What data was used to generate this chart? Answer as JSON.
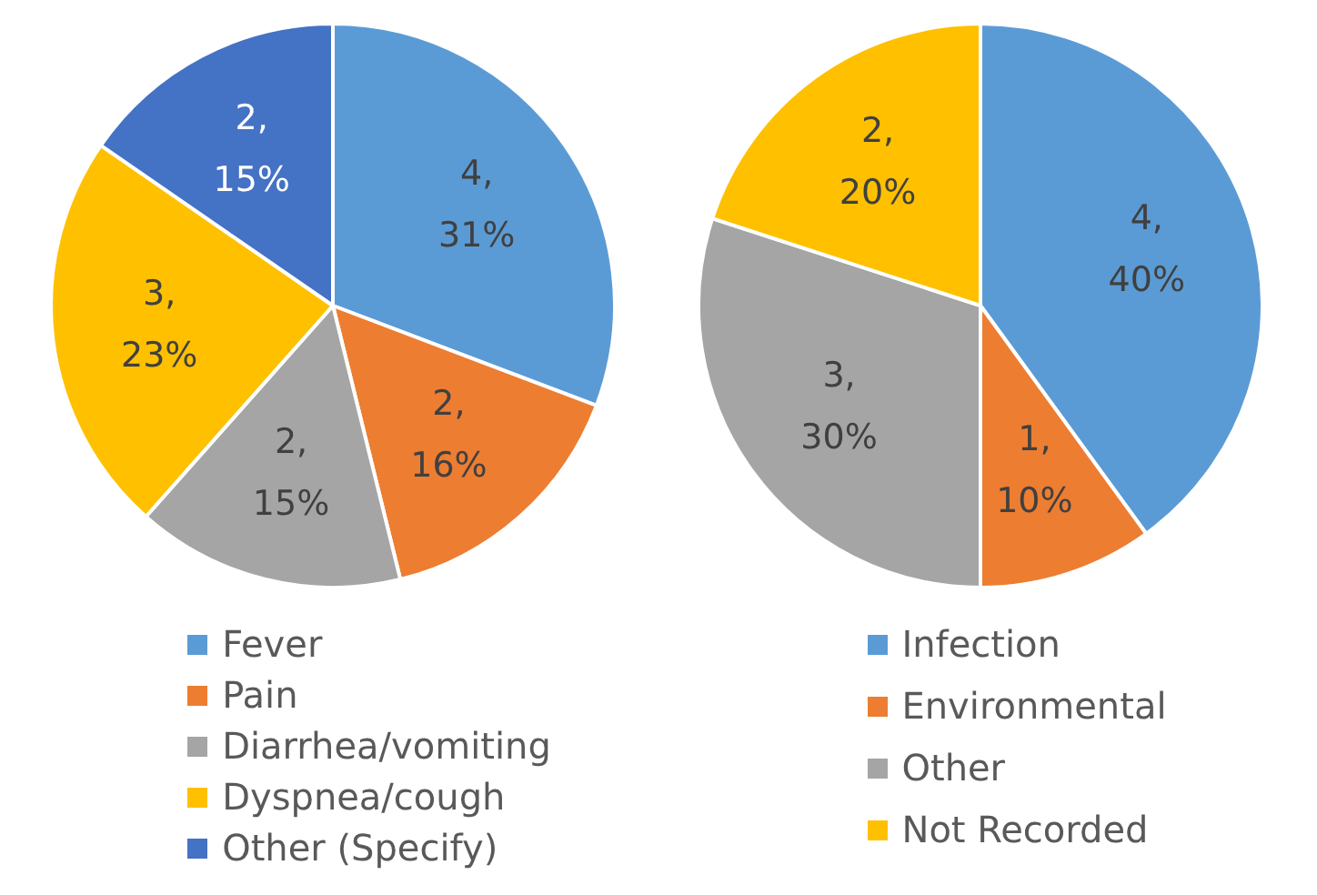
{
  "chart_data": [
    {
      "type": "pie",
      "categories": [
        "Fever",
        "Pain",
        "Diarrhea/vomiting",
        "Dyspnea/cough",
        "Other (Specify)"
      ],
      "values": [
        4,
        2,
        2,
        3,
        2
      ],
      "colors": [
        "#5b9bd5",
        "#ed7d31",
        "#a5a5a5",
        "#ffc000",
        "#4472c4"
      ],
      "value_labels": [
        "4,\n31%",
        "2,\n16%",
        "2,\n15%",
        "3,\n23%",
        "2,\n15%"
      ],
      "legend": "bottom"
    },
    {
      "type": "pie",
      "categories": [
        "Infection",
        "Environmental",
        "Other",
        "Not Recorded"
      ],
      "values": [
        4,
        1,
        3,
        2
      ],
      "colors": [
        "#5b9bd5",
        "#ed7d31",
        "#a5a5a5",
        "#ffc000"
      ],
      "value_labels": [
        "4,\n40%",
        "1,\n10%",
        "3,\n30%",
        "2,\n20%"
      ],
      "legend": "bottom"
    }
  ]
}
